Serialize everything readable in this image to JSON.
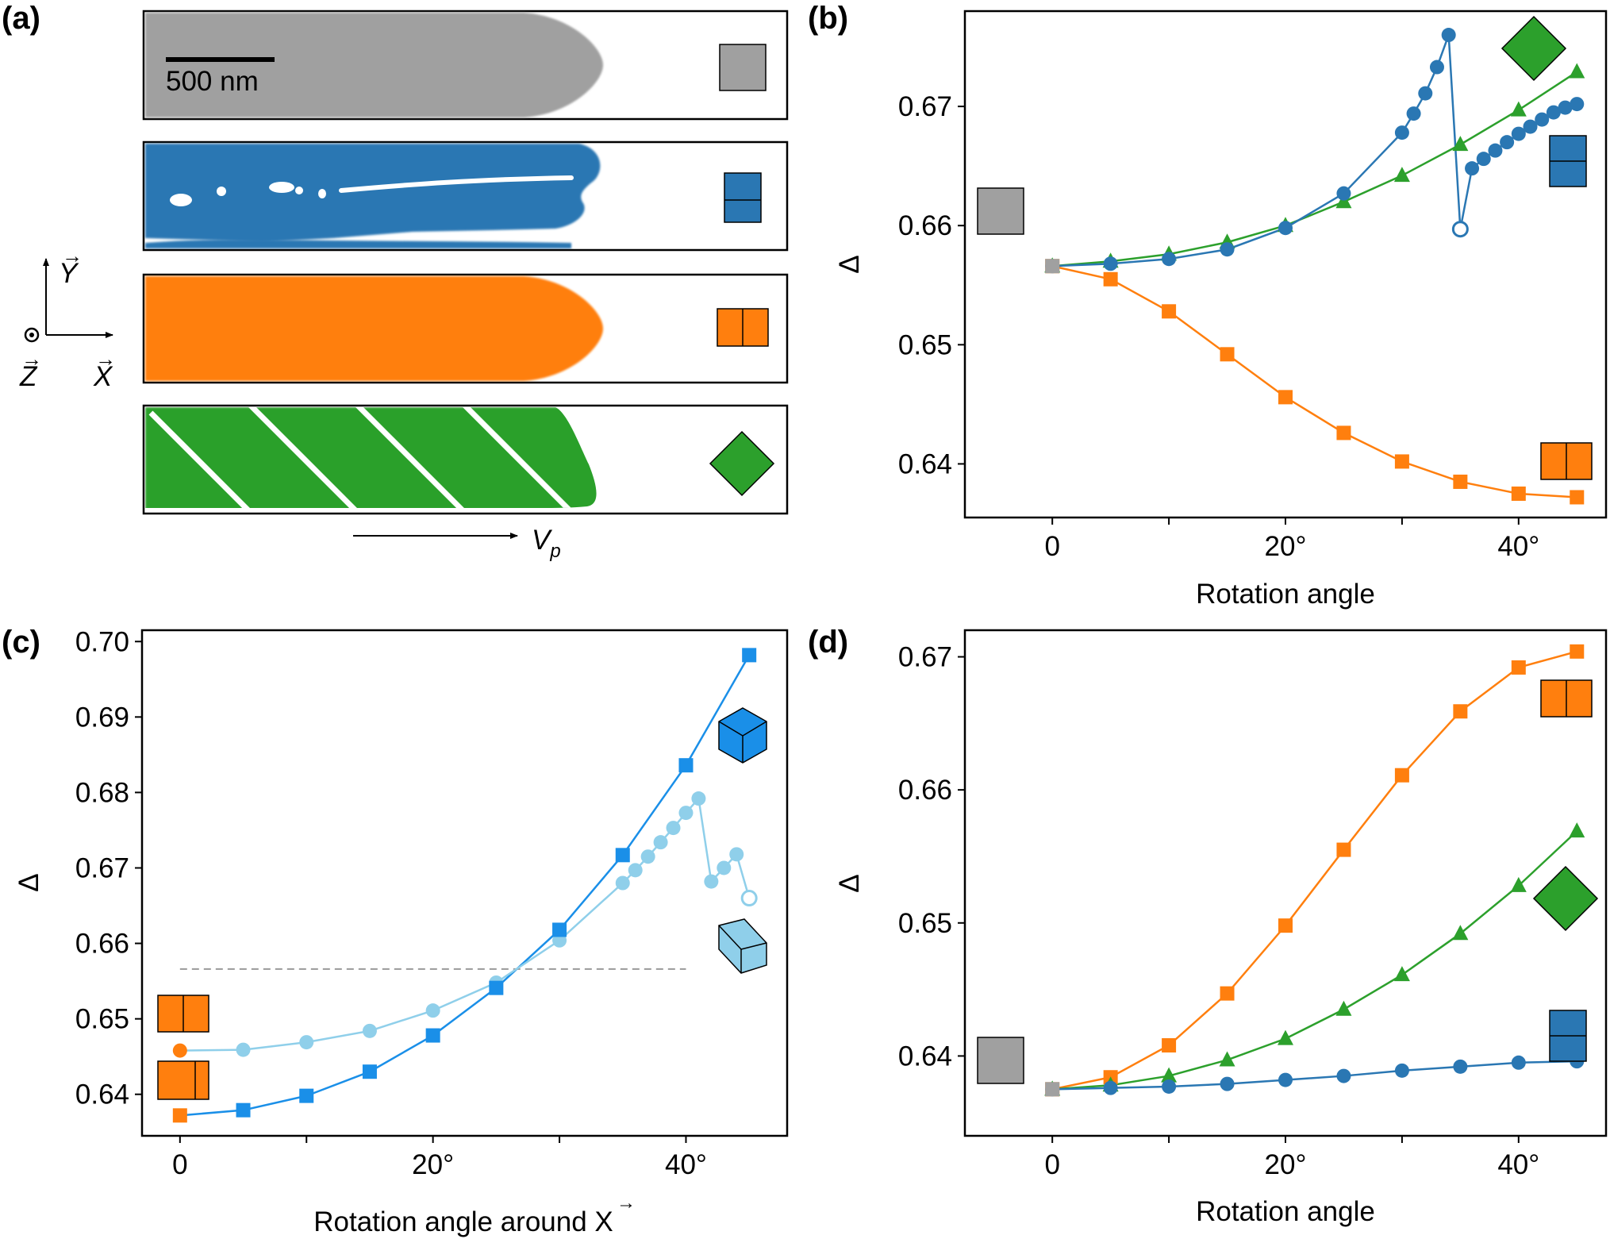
{
  "panel_labels": {
    "a": "(a)",
    "b": "(b)",
    "c": "(c)",
    "d": "(d)"
  },
  "panel_a": {
    "scale_bar_label": "500 nm",
    "axis_y": "Y",
    "axis_x": "X",
    "axis_z": "Z",
    "velocity_label": "V",
    "velocity_sub": "p",
    "strips": [
      "gray",
      "blue",
      "orange",
      "green"
    ]
  },
  "colors": {
    "gray": "#a0a0a0",
    "blue": "#2a77b3",
    "orange": "#ff7f0e",
    "green": "#2ca02c",
    "bright_blue": "#1a8fe8",
    "light_blue": "#8fcfea",
    "dashed": "#9a9a9a"
  },
  "chart_data": [
    {
      "id": "b",
      "type": "line",
      "xlabel": "Rotation angle",
      "ylabel": "Δ",
      "xlim": [
        -7.5,
        47.5
      ],
      "ylim": [
        0.6355,
        0.678
      ],
      "xticks": [
        0,
        20,
        40
      ],
      "xtick_labels": [
        "0",
        "20°",
        "40°"
      ],
      "yticks": [
        0.64,
        0.65,
        0.66,
        0.67
      ],
      "ytick_labels": [
        "0.64",
        "0.65",
        "0.66",
        "0.67"
      ],
      "start_point": {
        "x": 0,
        "y": 0.6566,
        "color": "#a0a0a0"
      },
      "series": [
        {
          "name": "orange",
          "color": "#ff7f0e",
          "marker": "square",
          "x": [
            0,
            5,
            10,
            15,
            20,
            25,
            30,
            35,
            40,
            45
          ],
          "y": [
            0.6566,
            0.6555,
            0.6528,
            0.6492,
            0.6456,
            0.6426,
            0.6402,
            0.6385,
            0.6375,
            0.6372
          ]
        },
        {
          "name": "green",
          "color": "#2ca02c",
          "marker": "triangle",
          "x": [
            0,
            5,
            10,
            15,
            20,
            25,
            30,
            35,
            40,
            45
          ],
          "y": [
            0.6566,
            0.657,
            0.6576,
            0.6586,
            0.66,
            0.662,
            0.6642,
            0.6668,
            0.6697,
            0.6729
          ]
        },
        {
          "name": "blue",
          "color": "#2a77b3",
          "marker": "circle",
          "x": [
            0,
            5,
            10,
            15,
            20,
            25,
            30,
            31,
            32,
            33,
            34,
            35,
            36,
            37,
            38,
            39,
            40,
            41,
            42,
            43,
            44,
            45
          ],
          "y": [
            0.6566,
            0.6568,
            0.6572,
            0.658,
            0.6598,
            0.6627,
            0.6678,
            0.6694,
            0.6711,
            0.6733,
            0.676,
            0.6597,
            0.6648,
            0.6656,
            0.6663,
            0.667,
            0.6677,
            0.6683,
            0.6689,
            0.6695,
            0.6699,
            0.6702
          ],
          "hollow_index": 11
        }
      ]
    },
    {
      "id": "c",
      "type": "line",
      "xlabel": "Rotation angle around X",
      "ylabel": "Δ",
      "xlim": [
        -3,
        48
      ],
      "ylim": [
        0.6345,
        0.7015
      ],
      "xticks": [
        0,
        20,
        40
      ],
      "xtick_labels": [
        "0",
        "20°",
        "40°"
      ],
      "yticks": [
        0.64,
        0.65,
        0.66,
        0.67,
        0.68,
        0.69,
        0.7
      ],
      "ytick_labels": [
        "0.64",
        "0.65",
        "0.66",
        "0.67",
        "0.68",
        "0.69",
        "0.70"
      ],
      "dashed_reference": {
        "y": 0.6566,
        "x_from": 0,
        "x_to": 40
      },
      "start_points": [
        {
          "x": 0,
          "y": 0.6372,
          "color": "#ff7f0e",
          "marker": "square"
        },
        {
          "x": 0,
          "y": 0.6458,
          "color": "#ff7f0e",
          "marker": "circle"
        }
      ],
      "series": [
        {
          "name": "bright-blue",
          "color": "#1a8fe8",
          "marker": "square",
          "x": [
            5,
            10,
            15,
            20,
            25,
            30,
            35,
            40,
            45
          ],
          "y": [
            0.6379,
            0.6398,
            0.643,
            0.6478,
            0.6541,
            0.6618,
            0.6717,
            0.6836,
            0.6982
          ]
        },
        {
          "name": "light-blue",
          "color": "#8fcfea",
          "marker": "circle",
          "x": [
            0,
            5,
            10,
            15,
            20,
            25,
            30,
            35,
            36,
            37,
            38,
            39,
            40,
            41,
            42,
            43,
            44,
            45
          ],
          "y": [
            0.6458,
            0.6459,
            0.6469,
            0.6484,
            0.6511,
            0.6548,
            0.6604,
            0.668,
            0.6697,
            0.6715,
            0.6734,
            0.6753,
            0.6773,
            0.6792,
            0.6682,
            0.67,
            0.6718,
            0.666
          ],
          "hollow_index": 17
        }
      ]
    },
    {
      "id": "d",
      "type": "line",
      "xlabel": "Rotation angle",
      "ylabel": "Δ",
      "xlim": [
        -7.5,
        47.5
      ],
      "ylim": [
        0.634,
        0.672
      ],
      "xticks": [
        0,
        20,
        40
      ],
      "xtick_labels": [
        "0",
        "20°",
        "40°"
      ],
      "yticks": [
        0.64,
        0.65,
        0.66,
        0.67
      ],
      "ytick_labels": [
        "0.64",
        "0.65",
        "0.66",
        "0.67"
      ],
      "start_point": {
        "x": 0,
        "y": 0.6375,
        "color": "#a0a0a0"
      },
      "series": [
        {
          "name": "orange",
          "color": "#ff7f0e",
          "marker": "square",
          "x": [
            0,
            5,
            10,
            15,
            20,
            25,
            30,
            35,
            40,
            45
          ],
          "y": [
            0.6375,
            0.6384,
            0.6408,
            0.6447,
            0.6498,
            0.6555,
            0.6611,
            0.6659,
            0.6692,
            0.6704
          ]
        },
        {
          "name": "green",
          "color": "#2ca02c",
          "marker": "triangle",
          "x": [
            0,
            5,
            10,
            15,
            20,
            25,
            30,
            35,
            40,
            45
          ],
          "y": [
            0.6375,
            0.6378,
            0.6385,
            0.6397,
            0.6413,
            0.6435,
            0.6461,
            0.6492,
            0.6528,
            0.6569
          ]
        },
        {
          "name": "blue",
          "color": "#2a77b3",
          "marker": "circle",
          "x": [
            0,
            5,
            10,
            15,
            20,
            25,
            30,
            35,
            40,
            45
          ],
          "y": [
            0.6375,
            0.6376,
            0.6377,
            0.6379,
            0.6382,
            0.6385,
            0.6389,
            0.6392,
            0.6395,
            0.6396
          ]
        }
      ]
    }
  ]
}
